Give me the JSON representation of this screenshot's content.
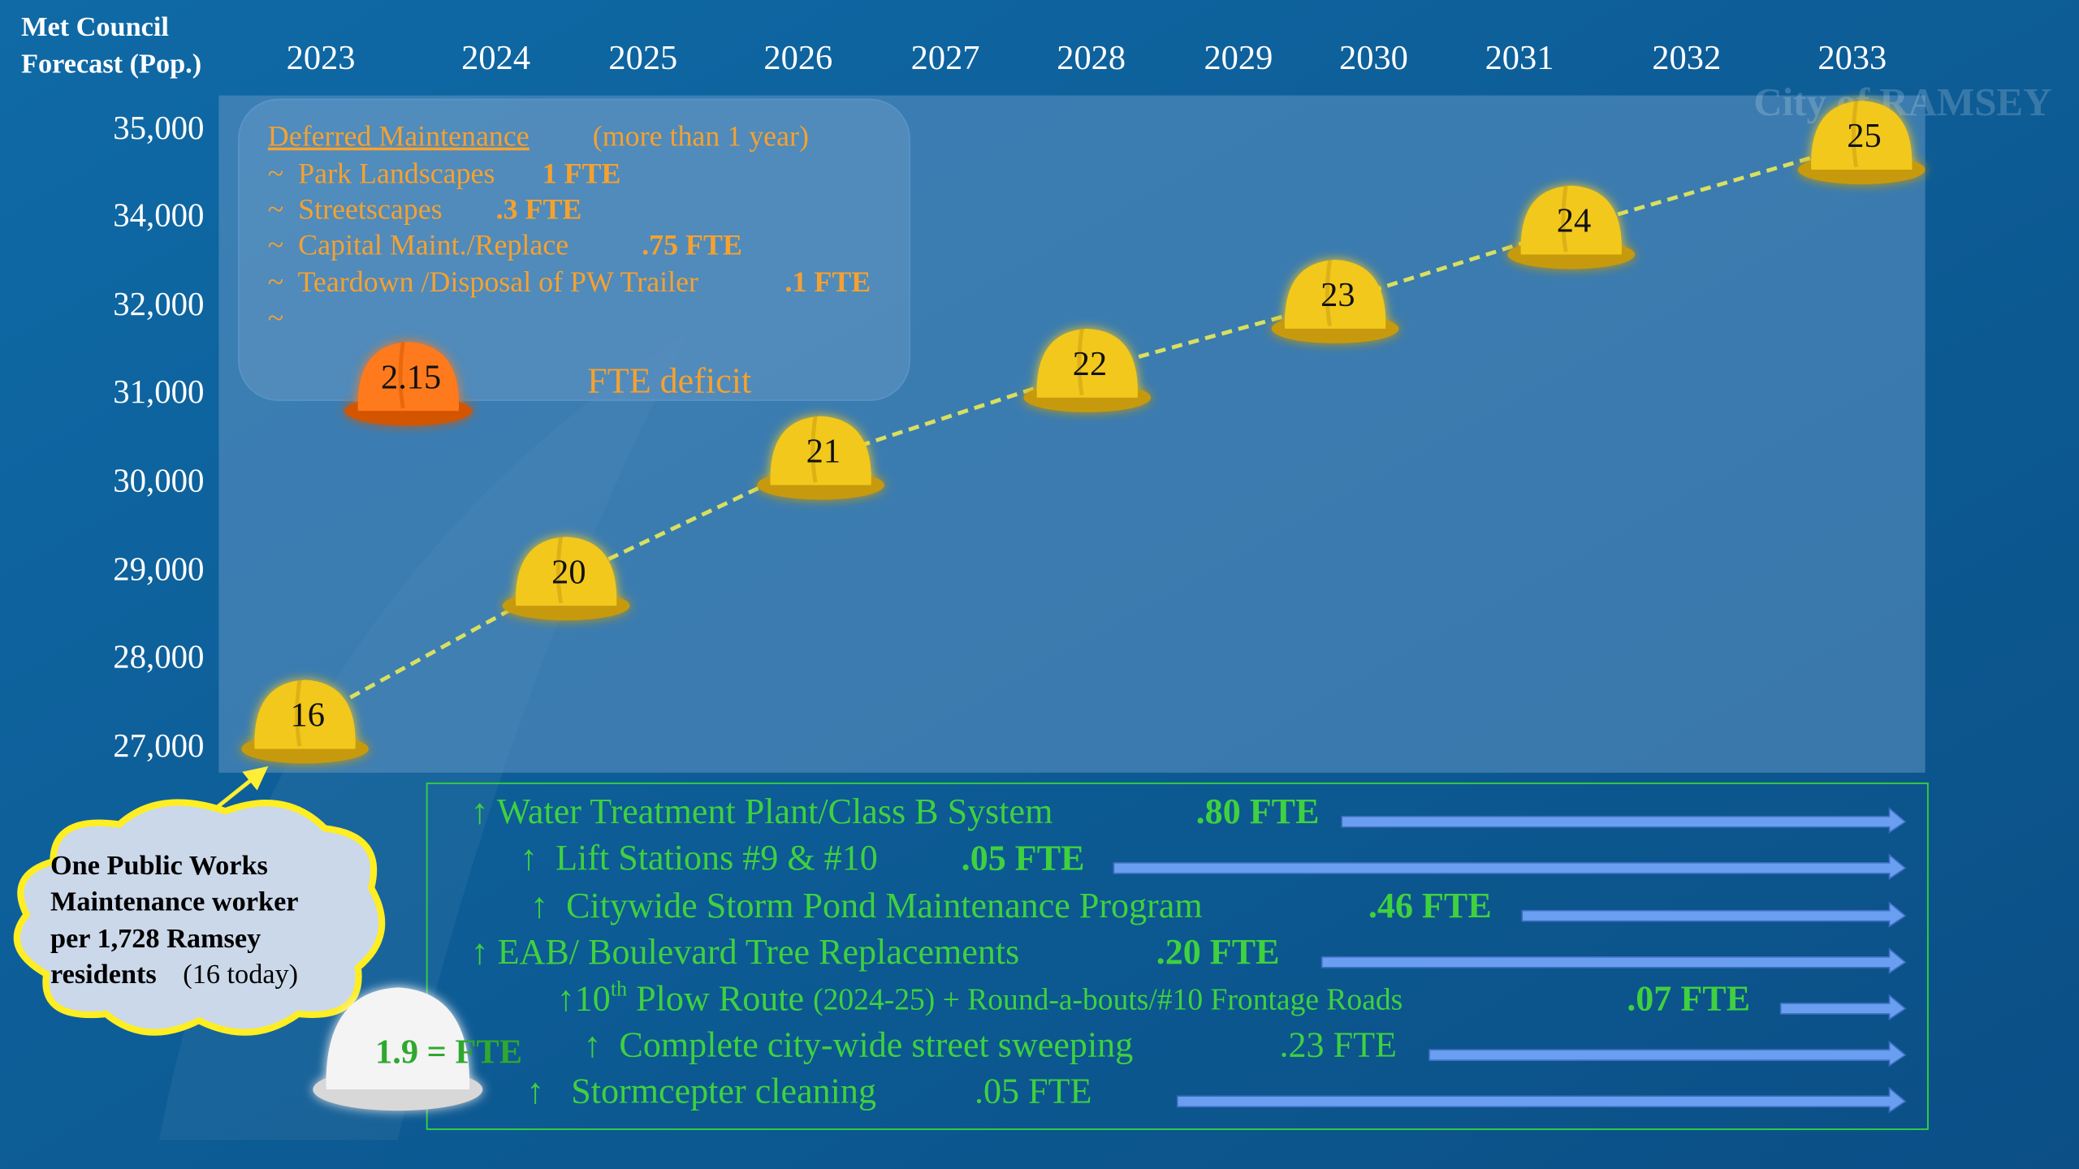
{
  "header": {
    "title_line1": "Met Council",
    "title_line2": "Forecast (Pop.)"
  },
  "years": [
    "2023",
    "2024",
    "2025",
    "2026",
    "2027",
    "2028",
    "2029",
    "2030",
    "2031",
    "2032",
    "2033"
  ],
  "y_axis_labels": [
    "35,000",
    "34,000",
    "32,000",
    "31,000",
    "30,000",
    "29,000",
    "28,000",
    "27,000"
  ],
  "hats": [
    "16",
    "20",
    "21",
    "22",
    "23",
    "24",
    "25"
  ],
  "deficit_hat": "2.15",
  "deferred": {
    "title": "Deferred Maintenance",
    "note": "(more than 1 year)",
    "items": [
      {
        "text": "~  Park Landscapes",
        "fte": "1 FTE"
      },
      {
        "text": "~  Streetscapes",
        "fte": ".3 FTE"
      },
      {
        "text": "~  Capital Maint./Replace",
        "fte": ".75 FTE"
      },
      {
        "text": "~  Teardown /Disposal of PW Trailer",
        "fte": ".1 FTE"
      }
    ],
    "blank_item": "~",
    "deficit_label": "FTE deficit"
  },
  "additions": [
    {
      "lead": "↑ Water Treatment Plant/Class B System",
      "fte": ".80 FTE",
      "fte_bold": true
    },
    {
      "lead": "↑  Lift Stations #9 & #10",
      "fte": ".05 FTE",
      "fte_bold": true
    },
    {
      "lead": "↑  Citywide Storm Pond Maintenance Program",
      "fte": ".46 FTE",
      "fte_bold": true
    },
    {
      "lead": "↑ EAB/ Boulevard Tree Replacements",
      "fte": ".20 FTE",
      "fte_bold": true
    },
    {
      "lead": "↑10",
      "sup": "th",
      "lead2": " Plow Route ",
      "small": "(2024-25) + Round-a-bouts/#10 Frontage Roads",
      "fte": ".07 FTE",
      "fte_bold": true
    },
    {
      "lead": "↑  Complete city-wide street sweeping",
      "fte": ".23 FTE",
      "fte_bold": false
    },
    {
      "lead": "↑   Stormcepter cleaning",
      "fte": ".05 FTE",
      "fte_bold": false
    }
  ],
  "cloud": {
    "lines": [
      "One Public Works",
      "Maintenance worker",
      "per 1,728 Ramsey",
      "residents"
    ],
    "note": "(16 today)"
  },
  "white_hat": "1.9 = FTE",
  "logo": "City of RAMSEY"
}
